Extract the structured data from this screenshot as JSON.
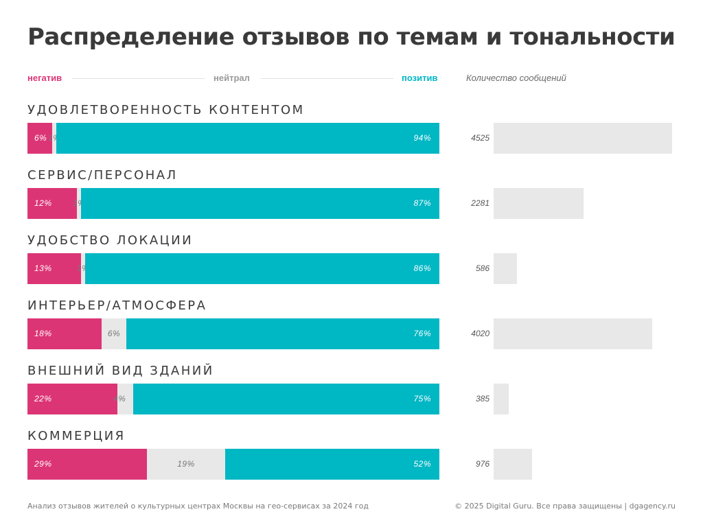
{
  "title": "Распределение отзывов по темам и тональности",
  "legend": {
    "negative": "негатив",
    "neutral": "нейтрал",
    "positive": "позитив",
    "count_header": "Количество сообщений"
  },
  "colors": {
    "negative": "#dc3576",
    "neutral": "#e8e8e8",
    "positive": "#00b7c4",
    "count_bar": "#e8e8e8"
  },
  "chart_data": {
    "type": "bar",
    "subtype": "stacked-100-horizontal-with-counts",
    "categories": [
      "УДОВЛЕТВОРЕННОСТЬ КОНТЕНТОМ",
      "СЕРВИС/ПЕРСОНАЛ",
      "УДОБСТВО ЛОКАЦИИ",
      "ИНТЕРЬЕР/АТМОСФЕРА",
      "ВНЕШНИЙ ВИД ЗДАНИЙ",
      "КОММЕРЦИЯ"
    ],
    "series": [
      {
        "name": "негатив",
        "values": [
          6,
          12,
          13,
          18,
          22,
          29
        ],
        "labels": [
          "6%",
          "12%",
          "13%",
          "18%",
          "22%",
          "29%"
        ]
      },
      {
        "name": "нейтрал",
        "values": [
          1,
          1,
          1,
          6,
          4,
          19
        ],
        "labels": [
          "1%",
          "1%",
          "1%",
          "6%",
          "4%",
          "19%"
        ]
      },
      {
        "name": "позитив",
        "values": [
          94,
          87,
          86,
          76,
          75,
          52
        ],
        "labels": [
          "94%",
          "87%",
          "86%",
          "76%",
          "75%",
          "52%"
        ]
      }
    ],
    "counts": {
      "name": "Количество сообщений",
      "values": [
        4525,
        2281,
        586,
        4020,
        385,
        976
      ]
    }
  },
  "footer": {
    "left": "Анализ отзывов жителей о культурных центрах Москвы на гео-сервисах за 2024 год",
    "right": "© 2025 Digital Guru. Все права защищены | dgagency.ru"
  }
}
